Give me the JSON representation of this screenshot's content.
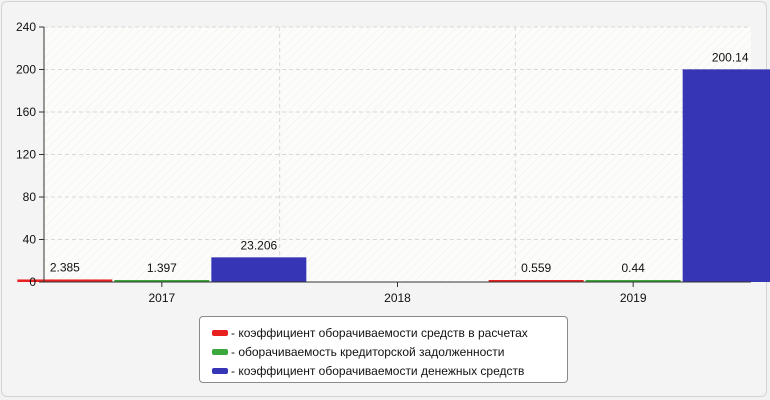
{
  "chart_data": {
    "type": "bar",
    "categories": [
      "2017",
      "2018",
      "2019"
    ],
    "ylim": [
      0,
      240
    ],
    "yticks": [
      0,
      40,
      80,
      120,
      160,
      200,
      240
    ],
    "grid": true,
    "legend_position": "bottom",
    "bars": [
      {
        "series": 0,
        "category": "2017",
        "value": 2.385,
        "label": "2.385"
      },
      {
        "series": 1,
        "category": "2017",
        "value": 1.397,
        "label": "1.397"
      },
      {
        "series": 2,
        "category": "2017",
        "value": 23.206,
        "label": "23.206"
      },
      {
        "series": 0,
        "category": "2019",
        "value": 0.559,
        "label": "0.559"
      },
      {
        "series": 1,
        "category": "2019",
        "value": 0.44,
        "label": "0.44"
      },
      {
        "series": 2,
        "category": "2019",
        "value": 200.14,
        "label": "200.14"
      }
    ],
    "series": [
      {
        "name": "- коэффициент оборачиваемости средств в расчетах",
        "color": "#e82020"
      },
      {
        "name": "- оборачиваемость кредиторской задолженности",
        "color": "#3aa83a"
      },
      {
        "name": "- коэффициент оборачиваемости денежных средств",
        "color": "#3535b5"
      }
    ]
  }
}
